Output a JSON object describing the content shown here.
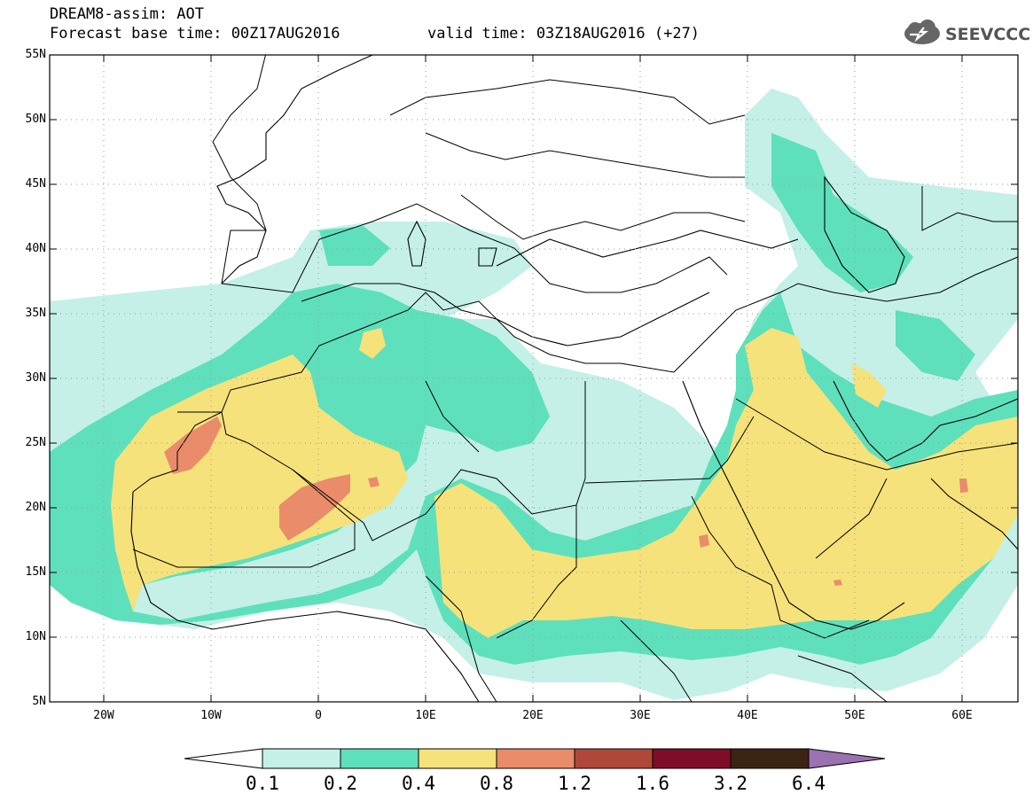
{
  "header": {
    "title": "DREAM8-assim: AOT",
    "base_time": "Forecast base time: 00Z17AUG2016",
    "valid_time": "valid time: 03Z18AUG2016 (+27)"
  },
  "logo": {
    "text": "SEEVCCC",
    "icon": "cloud-icon"
  },
  "axes": {
    "lat_labels": [
      "55N",
      "50N",
      "45N",
      "40N",
      "35N",
      "30N",
      "25N",
      "20N",
      "15N",
      "10N",
      "5N"
    ],
    "lon_labels": [
      "20W",
      "10W",
      "0",
      "10E",
      "20E",
      "30E",
      "40E",
      "50E",
      "60E"
    ],
    "lat_range": [
      5,
      55
    ],
    "lon_range": [
      -25,
      65
    ]
  },
  "colorbar": {
    "labels": [
      "0.1",
      "0.2",
      "0.4",
      "0.8",
      "1.2",
      "1.6",
      "3.2",
      "6.4"
    ],
    "colors": [
      "#c4f0e8",
      "#5ee0bc",
      "#f6e27a",
      "#ea8c6a",
      "#b0483a",
      "#7e0d28",
      "#3c2414",
      "#9a72b0"
    ]
  },
  "fields": {
    "level_0_1": "#c4f0e8",
    "level_0_2": "#5ee0bc",
    "level_0_4": "#f6e27a",
    "level_0_8": "#ea8c6a",
    "level_1_2": "#b0483a"
  }
}
